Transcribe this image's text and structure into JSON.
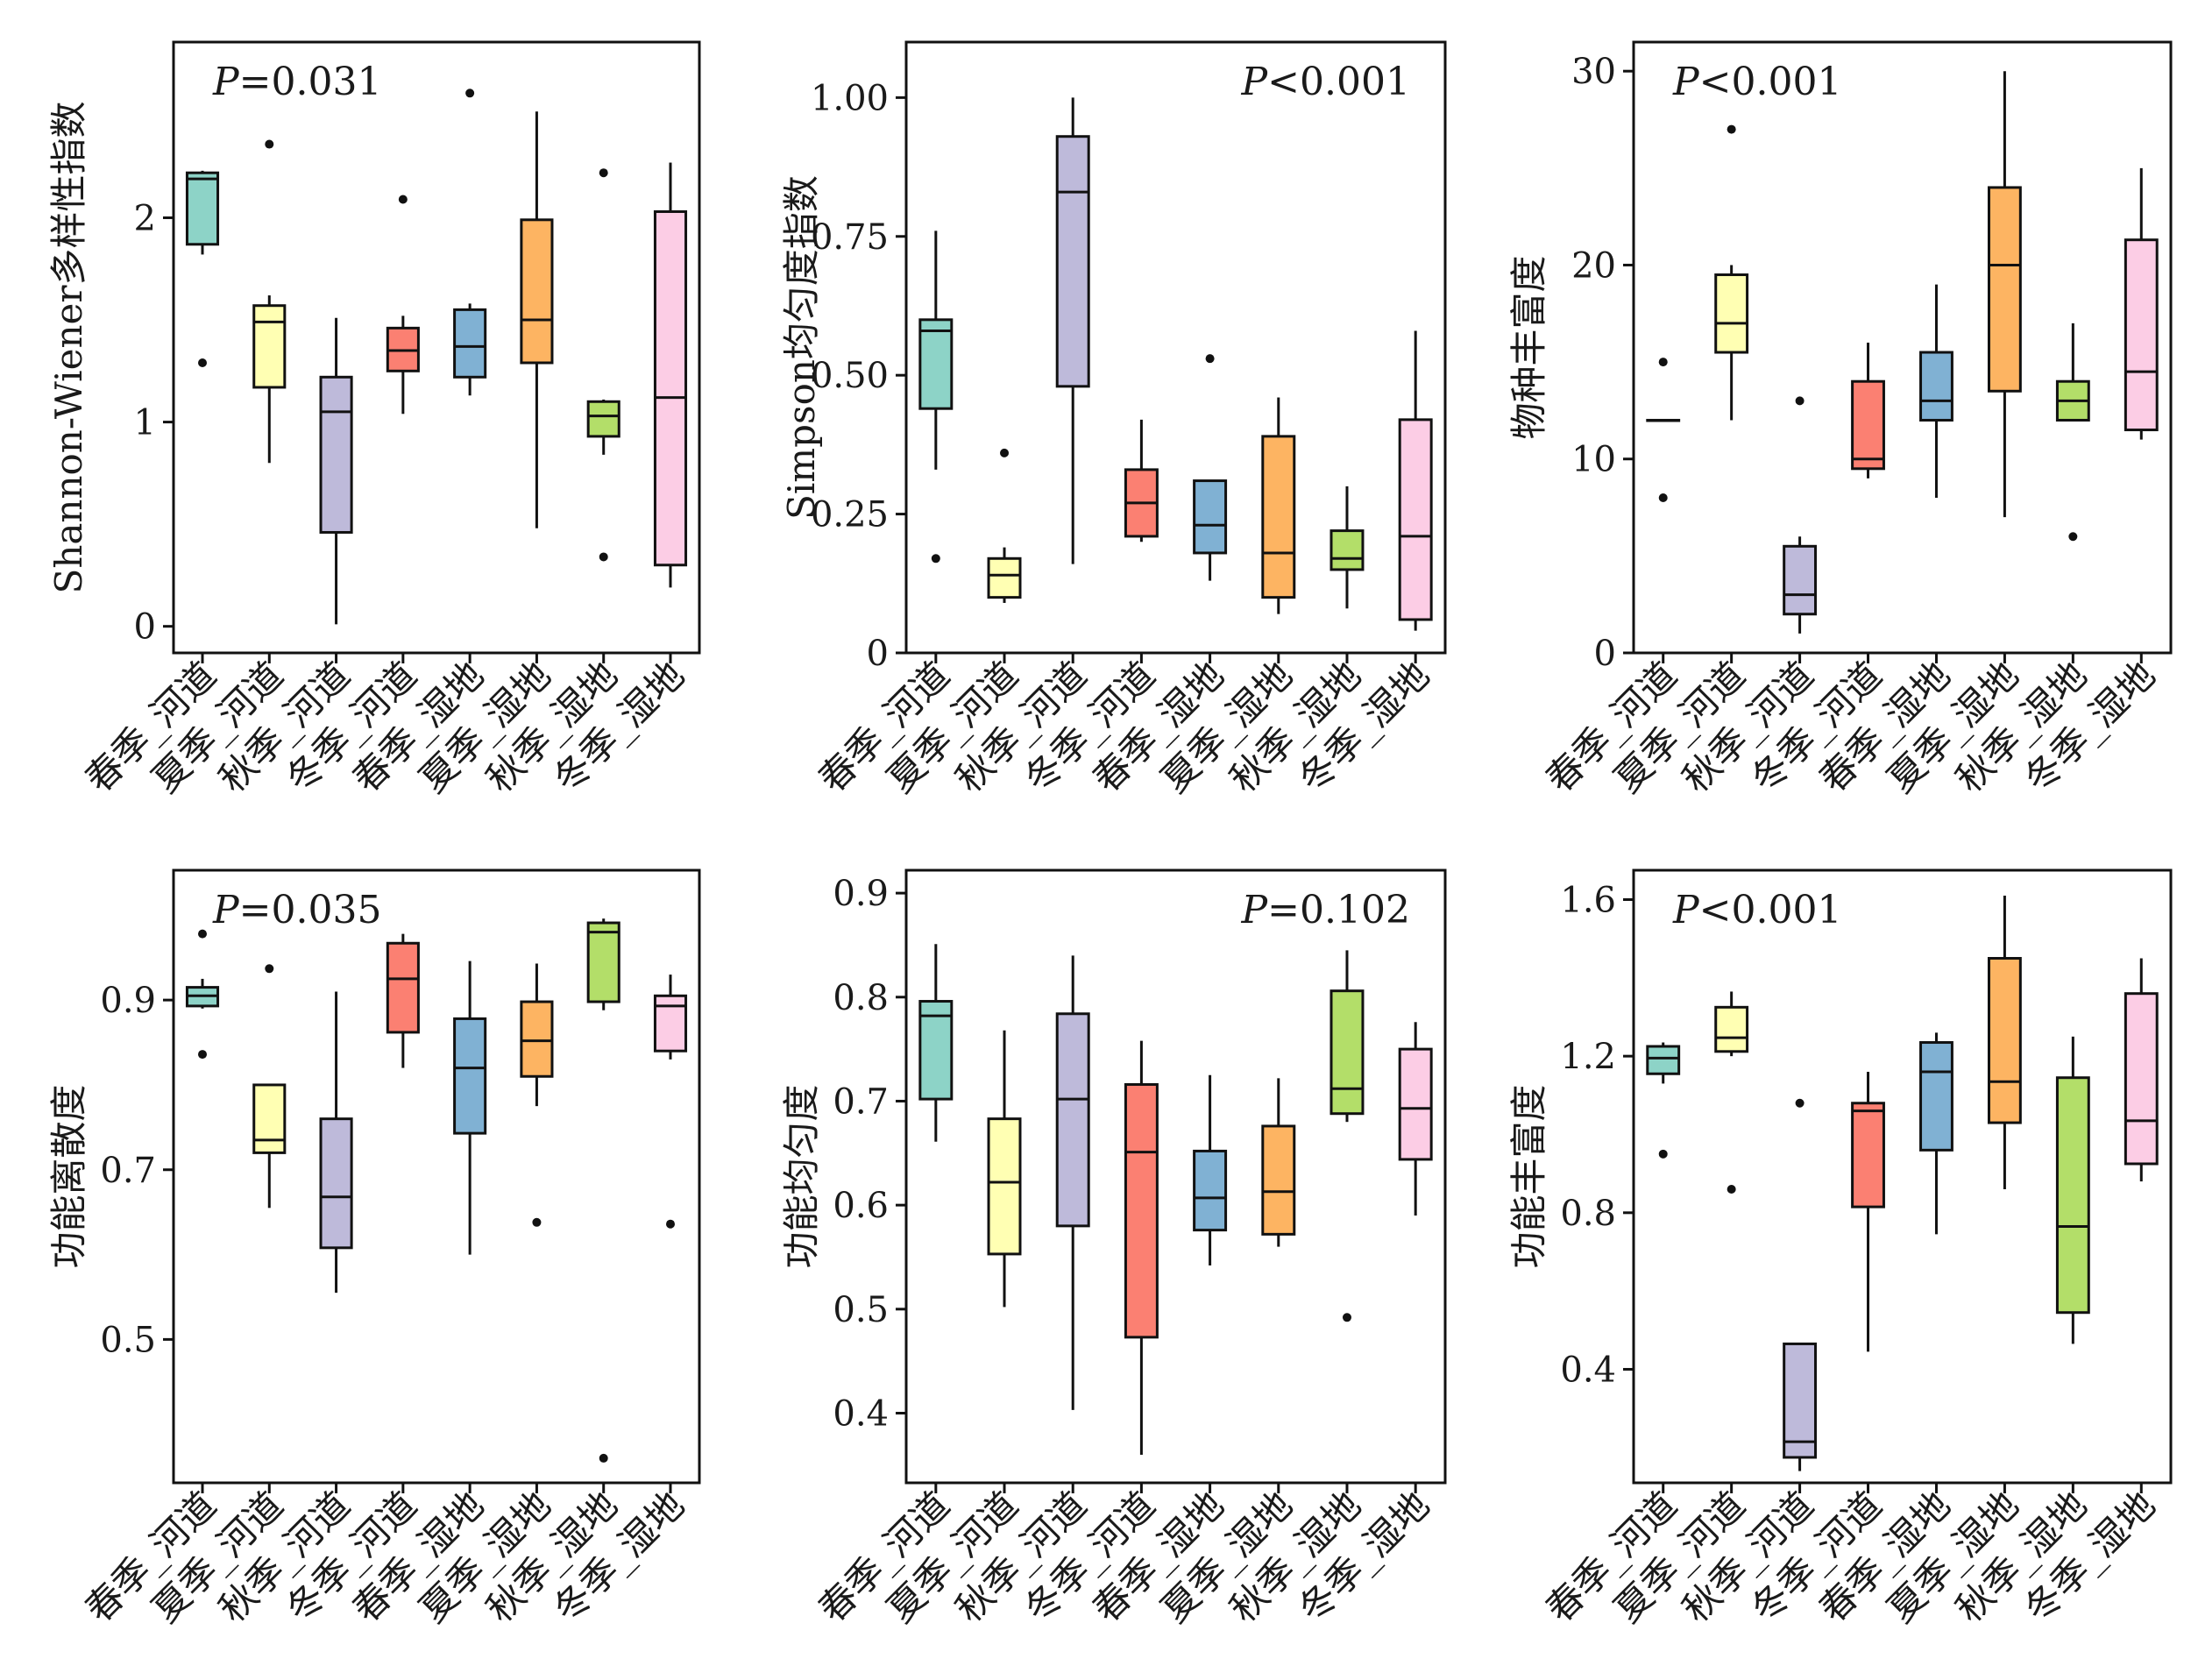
{
  "figure": {
    "colors": [
      "#8dd3c7",
      "#ffffb3",
      "#bebada",
      "#fb8072",
      "#80b1d3",
      "#fdb462",
      "#b3de69",
      "#fccde5"
    ]
  },
  "chart_data": [
    {
      "type": "box",
      "ylabel": "Shannon-Wiener多样性指数",
      "pvalue": "P=0.031",
      "pvalue_prefix": "P",
      "pvalue_rest": "=0.031",
      "pvalue_position": "top-left",
      "ylim": [
        -0.13,
        2.86
      ],
      "yticks": [
        0,
        1,
        2
      ],
      "categories": [
        "春季_河道",
        "夏季_河道",
        "秋季_河道",
        "冬季_河道",
        "春季_湿地",
        "夏季_湿地",
        "秋季_湿地",
        "冬季_湿地"
      ],
      "boxes": [
        {
          "whislo": 1.82,
          "q1": 1.87,
          "med": 2.19,
          "q3": 2.22,
          "whishi": 2.23,
          "fliers": [
            1.29
          ]
        },
        {
          "whislo": 0.8,
          "q1": 1.17,
          "med": 1.49,
          "q3": 1.57,
          "whishi": 1.62,
          "fliers": [
            2.36
          ]
        },
        {
          "whislo": 0.01,
          "q1": 0.46,
          "med": 1.05,
          "q3": 1.22,
          "whishi": 1.51,
          "fliers": []
        },
        {
          "whislo": 1.04,
          "q1": 1.25,
          "med": 1.35,
          "q3": 1.46,
          "whishi": 1.52,
          "fliers": [
            2.09
          ]
        },
        {
          "whislo": 1.13,
          "q1": 1.22,
          "med": 1.37,
          "q3": 1.55,
          "whishi": 1.58,
          "fliers": [
            2.61
          ]
        },
        {
          "whislo": 0.48,
          "q1": 1.29,
          "med": 1.5,
          "q3": 1.99,
          "whishi": 2.52,
          "fliers": []
        },
        {
          "whislo": 0.84,
          "q1": 0.93,
          "med": 1.03,
          "q3": 1.1,
          "whishi": 1.11,
          "fliers": [
            0.34,
            2.22
          ]
        },
        {
          "whislo": 0.19,
          "q1": 0.3,
          "med": 1.12,
          "q3": 2.03,
          "whishi": 2.27,
          "fliers": []
        }
      ]
    },
    {
      "type": "box",
      "ylabel": "Simpson均匀度指数",
      "pvalue": "P<0.001",
      "pvalue_prefix": "P",
      "pvalue_rest": "<0.001",
      "pvalue_position": "top-right",
      "ylim": [
        0,
        1.1
      ],
      "yticks": [
        0,
        0.25,
        0.5,
        0.75,
        1.0
      ],
      "yticklabels": [
        "0",
        "0.25",
        "0.50",
        "0.75",
        "1.00"
      ],
      "categories": [
        "春季_河道",
        "夏季_河道",
        "秋季_河道",
        "冬季_河道",
        "春季_湿地",
        "夏季_湿地",
        "秋季_湿地",
        "冬季_湿地"
      ],
      "boxes": [
        {
          "whislo": 0.33,
          "q1": 0.44,
          "med": 0.58,
          "q3": 0.6,
          "whishi": 0.76,
          "fliers": [
            0.17
          ]
        },
        {
          "whislo": 0.09,
          "q1": 0.1,
          "med": 0.14,
          "q3": 0.17,
          "whishi": 0.19,
          "fliers": [
            0.36
          ]
        },
        {
          "whislo": 0.16,
          "q1": 0.48,
          "med": 0.83,
          "q3": 0.93,
          "whishi": 1.0,
          "fliers": []
        },
        {
          "whislo": 0.2,
          "q1": 0.21,
          "med": 0.27,
          "q3": 0.33,
          "whishi": 0.42,
          "fliers": []
        },
        {
          "whislo": 0.13,
          "q1": 0.18,
          "med": 0.23,
          "q3": 0.31,
          "whishi": 0.31,
          "fliers": [
            0.53
          ]
        },
        {
          "whislo": 0.07,
          "q1": 0.1,
          "med": 0.18,
          "q3": 0.39,
          "whishi": 0.46,
          "fliers": []
        },
        {
          "whislo": 0.08,
          "q1": 0.15,
          "med": 0.17,
          "q3": 0.22,
          "whishi": 0.3,
          "fliers": []
        },
        {
          "whislo": 0.04,
          "q1": 0.06,
          "med": 0.21,
          "q3": 0.42,
          "whishi": 0.58,
          "fliers": []
        }
      ]
    },
    {
      "type": "box",
      "ylabel": "物种丰富度",
      "pvalue": "P<0.001",
      "pvalue_prefix": "P",
      "pvalue_rest": "<0.001",
      "pvalue_position": "top-left",
      "ylim": [
        0,
        31.5
      ],
      "yticks": [
        0,
        10,
        20,
        30
      ],
      "categories": [
        "春季_河道",
        "夏季_河道",
        "秋季_河道",
        "冬季_河道",
        "春季_湿地",
        "夏季_湿地",
        "秋季_湿地",
        "冬季_湿地"
      ],
      "boxes": [
        {
          "whislo": 12,
          "q1": 12,
          "med": 12,
          "q3": 12,
          "whishi": 12,
          "fliers": [
            8,
            15
          ]
        },
        {
          "whislo": 12,
          "q1": 15.5,
          "med": 17,
          "q3": 19.5,
          "whishi": 20,
          "fliers": [
            27
          ]
        },
        {
          "whislo": 1,
          "q1": 2,
          "med": 3,
          "q3": 5.5,
          "whishi": 6,
          "fliers": [
            13
          ]
        },
        {
          "whislo": 9,
          "q1": 9.5,
          "med": 10,
          "q3": 14,
          "whishi": 16,
          "fliers": []
        },
        {
          "whislo": 8,
          "q1": 12,
          "med": 13,
          "q3": 15.5,
          "whishi": 19,
          "fliers": []
        },
        {
          "whislo": 7,
          "q1": 13.5,
          "med": 20,
          "q3": 24,
          "whishi": 30,
          "fliers": []
        },
        {
          "whislo": 12,
          "q1": 12,
          "med": 13,
          "q3": 14,
          "whishi": 17,
          "fliers": [
            6
          ]
        },
        {
          "whislo": 11,
          "q1": 11.5,
          "med": 14.5,
          "q3": 21.3,
          "whishi": 25,
          "fliers": []
        }
      ]
    },
    {
      "type": "box",
      "ylabel": "功能离散度",
      "pvalue": "P=0.035",
      "pvalue_prefix": "P",
      "pvalue_rest": "=0.035",
      "pvalue_position": "top-left",
      "ylim": [
        0.331,
        1.053
      ],
      "yticks": [
        0.5,
        0.7,
        0.9
      ],
      "categories": [
        "春季_河道",
        "夏季_河道",
        "秋季_河道",
        "冬季_河道",
        "春季_湿地",
        "夏季_湿地",
        "秋季_湿地",
        "冬季_湿地"
      ],
      "boxes": [
        {
          "whislo": 0.89,
          "q1": 0.893,
          "med": 0.905,
          "q3": 0.915,
          "whishi": 0.925,
          "fliers": [
            0.836,
            0.978
          ]
        },
        {
          "whislo": 0.655,
          "q1": 0.72,
          "med": 0.735,
          "q3": 0.8,
          "whishi": 0.8,
          "fliers": [
            0.937
          ]
        },
        {
          "whislo": 0.555,
          "q1": 0.608,
          "med": 0.668,
          "q3": 0.76,
          "whishi": 0.91,
          "fliers": []
        },
        {
          "whislo": 0.82,
          "q1": 0.862,
          "med": 0.925,
          "q3": 0.967,
          "whishi": 0.978,
          "fliers": []
        },
        {
          "whislo": 0.6,
          "q1": 0.743,
          "med": 0.82,
          "q3": 0.878,
          "whishi": 0.946,
          "fliers": []
        },
        {
          "whislo": 0.775,
          "q1": 0.81,
          "med": 0.852,
          "q3": 0.898,
          "whishi": 0.943,
          "fliers": [
            0.638
          ]
        },
        {
          "whislo": 0.888,
          "q1": 0.898,
          "med": 0.98,
          "q3": 0.991,
          "whishi": 0.996,
          "fliers": [
            0.36
          ]
        },
        {
          "whislo": 0.83,
          "q1": 0.84,
          "med": 0.893,
          "q3": 0.905,
          "whishi": 0.93,
          "fliers": [
            0.636
          ]
        }
      ]
    },
    {
      "type": "box",
      "ylabel": "功能均匀度",
      "pvalue": "P=0.102",
      "pvalue_prefix": "P",
      "pvalue_rest": "=0.102",
      "pvalue_position": "top-right",
      "ylim": [
        0.333,
        0.922
      ],
      "yticks": [
        0.4,
        0.5,
        0.6,
        0.7,
        0.8,
        0.9
      ],
      "categories": [
        "春季_河道",
        "夏季_河道",
        "秋季_河道",
        "冬季_河道",
        "春季_湿地",
        "夏季_湿地",
        "秋季_湿地",
        "冬季_湿地"
      ],
      "boxes": [
        {
          "whislo": 0.661,
          "q1": 0.702,
          "med": 0.782,
          "q3": 0.796,
          "whishi": 0.851,
          "fliers": []
        },
        {
          "whislo": 0.502,
          "q1": 0.553,
          "med": 0.622,
          "q3": 0.683,
          "whishi": 0.768,
          "fliers": []
        },
        {
          "whislo": 0.403,
          "q1": 0.58,
          "med": 0.702,
          "q3": 0.784,
          "whishi": 0.84,
          "fliers": []
        },
        {
          "whislo": 0.36,
          "q1": 0.473,
          "med": 0.651,
          "q3": 0.716,
          "whishi": 0.758,
          "fliers": []
        },
        {
          "whislo": 0.542,
          "q1": 0.576,
          "med": 0.607,
          "q3": 0.652,
          "whishi": 0.725,
          "fliers": []
        },
        {
          "whislo": 0.56,
          "q1": 0.572,
          "med": 0.613,
          "q3": 0.676,
          "whishi": 0.722,
          "fliers": []
        },
        {
          "whislo": 0.68,
          "q1": 0.688,
          "med": 0.712,
          "q3": 0.806,
          "whishi": 0.845,
          "fliers": [
            0.492
          ]
        },
        {
          "whislo": 0.59,
          "q1": 0.644,
          "med": 0.693,
          "q3": 0.75,
          "whishi": 0.776,
          "fliers": []
        }
      ]
    },
    {
      "type": "box",
      "ylabel": "功能丰富度",
      "pvalue": "P<0.001",
      "pvalue_prefix": "P",
      "pvalue_rest": "<0.001",
      "pvalue_position": "top-left",
      "ylim": [
        0.11,
        1.675
      ],
      "yticks": [
        0.4,
        0.8,
        1.2,
        1.6
      ],
      "categories": [
        "春季_河道",
        "夏季_河道",
        "秋季_河道",
        "冬季_河道",
        "春季_湿地",
        "夏季_湿地",
        "秋季_湿地",
        "冬季_湿地"
      ],
      "boxes": [
        {
          "whislo": 1.13,
          "q1": 1.155,
          "med": 1.195,
          "q3": 1.225,
          "whishi": 1.235,
          "fliers": [
            0.95
          ]
        },
        {
          "whislo": 1.2,
          "q1": 1.212,
          "med": 1.247,
          "q3": 1.325,
          "whishi": 1.365,
          "fliers": [
            0.86
          ]
        },
        {
          "whislo": 0.14,
          "q1": 0.175,
          "med": 0.215,
          "q3": 0.465,
          "whishi": 0.465,
          "fliers": [
            1.08
          ]
        },
        {
          "whislo": 0.445,
          "q1": 0.815,
          "med": 1.06,
          "q3": 1.08,
          "whishi": 1.16,
          "fliers": []
        },
        {
          "whislo": 0.745,
          "q1": 0.96,
          "med": 1.16,
          "q3": 1.235,
          "whishi": 1.26,
          "fliers": []
        },
        {
          "whislo": 0.86,
          "q1": 1.03,
          "med": 1.135,
          "q3": 1.45,
          "whishi": 1.61,
          "fliers": []
        },
        {
          "whislo": 0.465,
          "q1": 0.545,
          "med": 0.765,
          "q3": 1.145,
          "whishi": 1.25,
          "fliers": []
        },
        {
          "whislo": 0.88,
          "q1": 0.925,
          "med": 1.035,
          "q3": 1.36,
          "whishi": 1.45,
          "fliers": []
        }
      ]
    }
  ]
}
